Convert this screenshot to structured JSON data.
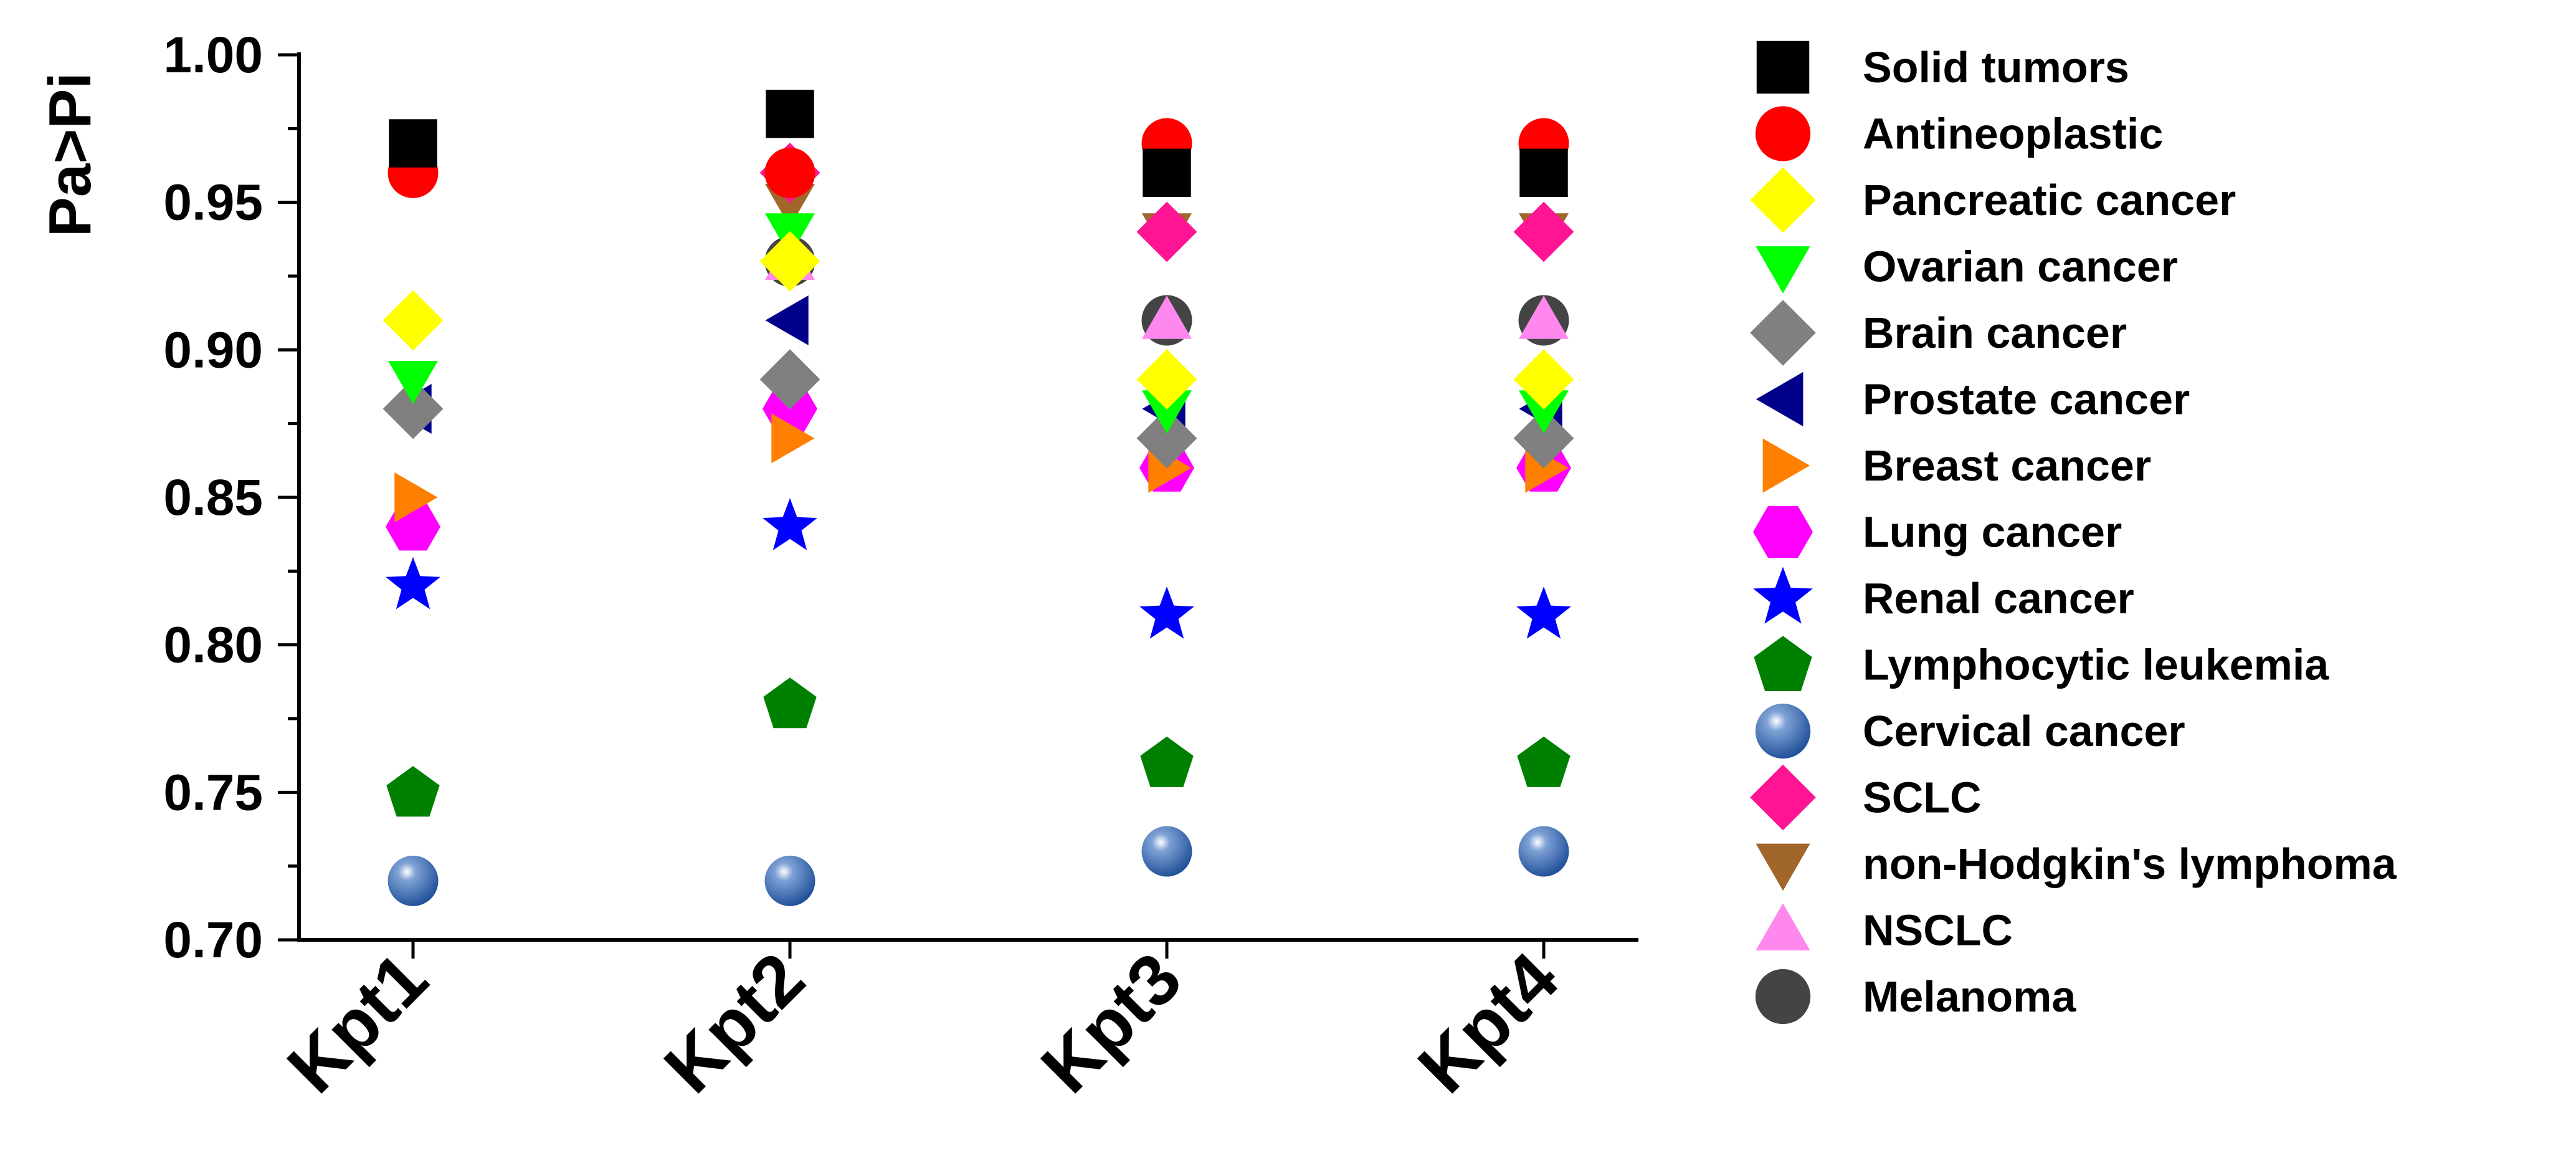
{
  "chart_data": {
    "type": "scatter",
    "ylabel": "Pa>Pi",
    "xlabel": "",
    "categories": [
      "Kpt1",
      "Kpt2",
      "Kpt3",
      "Kpt4"
    ],
    "ylim": [
      0.7,
      1.0
    ],
    "yticks": [
      0.7,
      0.75,
      0.8,
      0.85,
      0.9,
      0.95,
      1.0
    ],
    "ytick_labels": [
      "0.70",
      "0.75",
      "0.80",
      "0.85",
      "0.90",
      "0.95",
      "1.00"
    ],
    "grid": false,
    "legend_position": "right",
    "series": [
      {
        "name": "Solid tumors",
        "marker": "square",
        "color": "#000000",
        "values": [
          0.97,
          0.98,
          0.96,
          0.96
        ]
      },
      {
        "name": "Antineoplastic",
        "marker": "circle",
        "color": "#ff0000",
        "values": [
          0.96,
          0.96,
          0.97,
          0.97
        ]
      },
      {
        "name": "Pancreatic cancer",
        "marker": "diamond",
        "color": "#ffff00",
        "values": [
          0.91,
          0.93,
          0.89,
          0.89
        ]
      },
      {
        "name": "Ovarian cancer",
        "marker": "triangle-down",
        "color": "#00ff00",
        "values": [
          0.89,
          0.94,
          0.88,
          0.88
        ]
      },
      {
        "name": "Brain cancer",
        "marker": "diamond",
        "color": "#808080",
        "values": [
          0.88,
          0.89,
          0.87,
          0.87
        ]
      },
      {
        "name": "Prostate cancer",
        "marker": "triangle-left",
        "color": "#00008b",
        "values": [
          0.88,
          0.91,
          0.88,
          0.88
        ]
      },
      {
        "name": "Breast cancer",
        "marker": "triangle-right",
        "color": "#ff8000",
        "values": [
          0.85,
          0.87,
          0.86,
          0.86
        ]
      },
      {
        "name": "Lung cancer",
        "marker": "hexagon",
        "color": "#ff00ff",
        "values": [
          0.84,
          0.88,
          0.86,
          0.86
        ]
      },
      {
        "name": "Renal cancer",
        "marker": "star",
        "color": "#0000ff",
        "values": [
          0.82,
          0.84,
          0.81,
          0.81
        ]
      },
      {
        "name": "Lymphocytic leukemia",
        "marker": "pentagon",
        "color": "#008000",
        "values": [
          0.75,
          0.78,
          0.76,
          0.76
        ]
      },
      {
        "name": "Cervical cancer",
        "marker": "sphere",
        "color": "#3366aa",
        "values": [
          0.72,
          0.72,
          0.73,
          0.73
        ]
      },
      {
        "name": "SCLC",
        "marker": "diamond",
        "color": "#ff1493",
        "values": [
          null,
          0.96,
          0.94,
          0.94
        ]
      },
      {
        "name": "non-Hodgkin's lymphoma",
        "marker": "triangle-down",
        "color": "#a0662a",
        "values": [
          null,
          0.95,
          0.94,
          0.94
        ]
      },
      {
        "name": "NSCLC",
        "marker": "triangle-up",
        "color": "#ff88ee",
        "values": [
          null,
          0.93,
          0.91,
          0.91
        ]
      },
      {
        "name": "Melanoma",
        "marker": "circle",
        "color": "#444444",
        "values": [
          null,
          0.93,
          0.91,
          0.91
        ]
      }
    ]
  }
}
